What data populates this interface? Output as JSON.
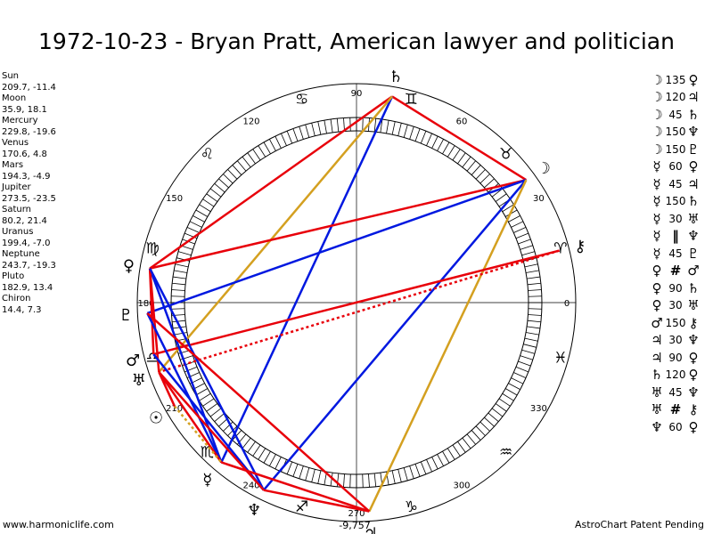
{
  "title": "1972-10-23 - Bryan Pratt, American lawyer and politician",
  "footer": {
    "site": "www.harmoniclife.com",
    "patent": "AstroChart Patent Pending"
  },
  "planet_table": [
    {
      "name": "Sun",
      "coords": "209.7, -11.4"
    },
    {
      "name": "Moon",
      "coords": "35.9, 18.1"
    },
    {
      "name": "Mercury",
      "coords": "229.8, -19.6"
    },
    {
      "name": "Venus",
      "coords": "170.6, 4.8"
    },
    {
      "name": "Mars",
      "coords": "194.3, -4.9"
    },
    {
      "name": "Jupiter",
      "coords": "273.5, -23.5"
    },
    {
      "name": "Saturn",
      "coords": "80.2, 21.4"
    },
    {
      "name": "Uranus",
      "coords": "199.4, -7.0"
    },
    {
      "name": "Neptune",
      "coords": "243.7, -19.3"
    },
    {
      "name": "Pluto",
      "coords": "182.9, 13.4"
    },
    {
      "name": "Chiron",
      "coords": "14.4, 7.3"
    }
  ],
  "aspects": [
    {
      "p1": "☽",
      "angle": "135",
      "p2": "♀"
    },
    {
      "p1": "☽",
      "angle": "120",
      "p2": "♃"
    },
    {
      "p1": "☽",
      "angle": "45",
      "p2": "♄"
    },
    {
      "p1": "☽",
      "angle": "150",
      "p2": "♆"
    },
    {
      "p1": "☽",
      "angle": "150",
      "p2": "♇"
    },
    {
      "p1": "☿",
      "angle": "60",
      "p2": "♀"
    },
    {
      "p1": "☿",
      "angle": "45",
      "p2": "♃"
    },
    {
      "p1": "☿",
      "angle": "150",
      "p2": "♄"
    },
    {
      "p1": "☿",
      "angle": "30",
      "p2": "♅"
    },
    {
      "p1": "☿",
      "angle": "‖",
      "p2": "♆"
    },
    {
      "p1": "☿",
      "angle": "45",
      "p2": "♇"
    },
    {
      "p1": "♀",
      "angle": "#",
      "p2": "♂"
    },
    {
      "p1": "♀",
      "angle": "90",
      "p2": "♄"
    },
    {
      "p1": "♀",
      "angle": "30",
      "p2": "♅"
    },
    {
      "p1": "♂",
      "angle": "150",
      "p2": "⚷"
    },
    {
      "p1": "♃",
      "angle": "30",
      "p2": "♆"
    },
    {
      "p1": "♃",
      "angle": "90",
      "p2": "♀"
    },
    {
      "p1": "♄",
      "angle": "120",
      "p2": "♀"
    },
    {
      "p1": "♅",
      "angle": "45",
      "p2": "♆"
    },
    {
      "p1": "♅",
      "angle": "#",
      "p2": "⚷"
    },
    {
      "p1": "♆",
      "angle": "60",
      "p2": "♀"
    }
  ],
  "wheel": {
    "degree_labels": [
      "90",
      "60",
      "30",
      "0",
      "330",
      "300",
      "270",
      "240",
      "210",
      "180",
      "150",
      "120"
    ],
    "sign_glyphs": [
      "♈",
      "♉",
      "♊",
      "♋",
      "♌",
      "♍",
      "♎",
      "♏",
      "♐",
      "♑",
      "♒",
      "♓"
    ],
    "bottom_value": "-9,757",
    "planet_glyphs": [
      {
        "glyph": "♄",
        "lon": 80.2
      },
      {
        "glyph": "☽",
        "lon": 35.9
      },
      {
        "glyph": "⚷",
        "lon": 14.4
      },
      {
        "glyph": "♀",
        "lon": 170.6
      },
      {
        "glyph": "♇",
        "lon": 182.9
      },
      {
        "glyph": "♂",
        "lon": 194.3
      },
      {
        "glyph": "♅",
        "lon": 199.4
      },
      {
        "glyph": "☉",
        "lon": 209.7
      },
      {
        "glyph": "☿",
        "lon": 229.8
      },
      {
        "glyph": "♆",
        "lon": 243.7
      },
      {
        "glyph": "♃",
        "lon": 273.5
      }
    ],
    "colors": {
      "red": "#e8000a",
      "blue": "#0018e0",
      "gold": "#d4a020"
    },
    "lines": [
      {
        "a": 80.2,
        "b": 35.9,
        "color": "red"
      },
      {
        "a": 80.2,
        "b": 170.6,
        "color": "red"
      },
      {
        "a": 80.2,
        "b": 229.8,
        "color": "blue"
      },
      {
        "a": 80.2,
        "b": 199.4,
        "color": "gold"
      },
      {
        "a": 35.9,
        "b": 170.6,
        "color": "red"
      },
      {
        "a": 35.9,
        "b": 182.9,
        "color": "blue"
      },
      {
        "a": 35.9,
        "b": 243.7,
        "color": "blue"
      },
      {
        "a": 35.9,
        "b": 273.5,
        "color": "gold"
      },
      {
        "a": 14.4,
        "b": 194.3,
        "color": "red"
      },
      {
        "a": 14.4,
        "b": 199.4,
        "color": "red",
        "dotted": true
      },
      {
        "a": 170.6,
        "b": 229.8,
        "color": "blue"
      },
      {
        "a": 170.6,
        "b": 194.3,
        "color": "red"
      },
      {
        "a": 170.6,
        "b": 199.4,
        "color": "red"
      },
      {
        "a": 170.6,
        "b": 243.7,
        "color": "blue"
      },
      {
        "a": 182.9,
        "b": 229.8,
        "color": "blue"
      },
      {
        "a": 182.9,
        "b": 273.5,
        "color": "red"
      },
      {
        "a": 194.3,
        "b": 243.7,
        "color": "blue"
      },
      {
        "a": 199.4,
        "b": 243.7,
        "color": "red"
      },
      {
        "a": 199.4,
        "b": 229.8,
        "color": "red"
      },
      {
        "a": 229.8,
        "b": 273.5,
        "color": "red"
      },
      {
        "a": 243.7,
        "b": 273.5,
        "color": "red"
      },
      {
        "a": 209.7,
        "b": 229.8,
        "color": "gold",
        "dotted": true
      },
      {
        "a": 199.4,
        "b": 209.7,
        "color": "red"
      }
    ]
  }
}
